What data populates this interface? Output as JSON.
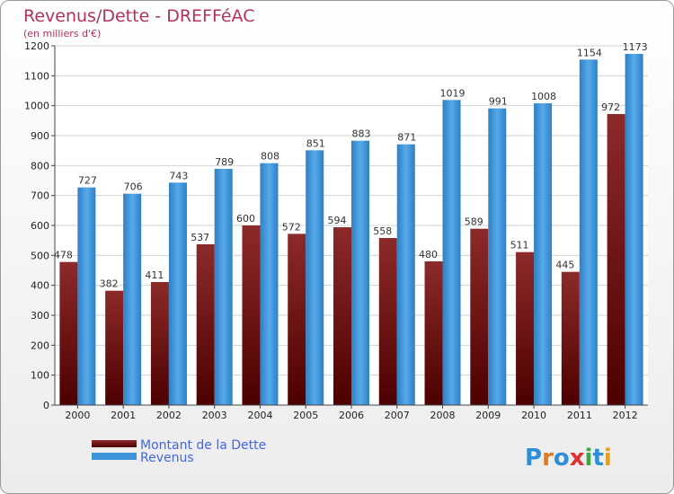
{
  "chart_data": {
    "type": "bar",
    "title": "Revenus/Dette - DREFFéAC",
    "subtitle": "(en milliers d'€)",
    "categories": [
      "2000",
      "2001",
      "2002",
      "2003",
      "2004",
      "2005",
      "2006",
      "2007",
      "2008",
      "2009",
      "2010",
      "2011",
      "2012"
    ],
    "series": [
      {
        "name": "Montant de la Dette",
        "color": "#7a1414",
        "values": [
          478,
          382,
          411,
          537,
          600,
          572,
          594,
          558,
          480,
          589,
          511,
          445,
          972
        ]
      },
      {
        "name": "Revenus",
        "color": "#3d92d8",
        "values": [
          727,
          706,
          743,
          789,
          808,
          851,
          883,
          871,
          1019,
          991,
          1008,
          1154,
          1173
        ]
      }
    ],
    "ylim": [
      0,
      1200
    ],
    "yticks": [
      0,
      100,
      200,
      300,
      400,
      500,
      600,
      700,
      800,
      900,
      1000,
      1100,
      1200
    ],
    "grid": true,
    "legend_position": "bottom-left"
  },
  "watermark": "Proxiti"
}
